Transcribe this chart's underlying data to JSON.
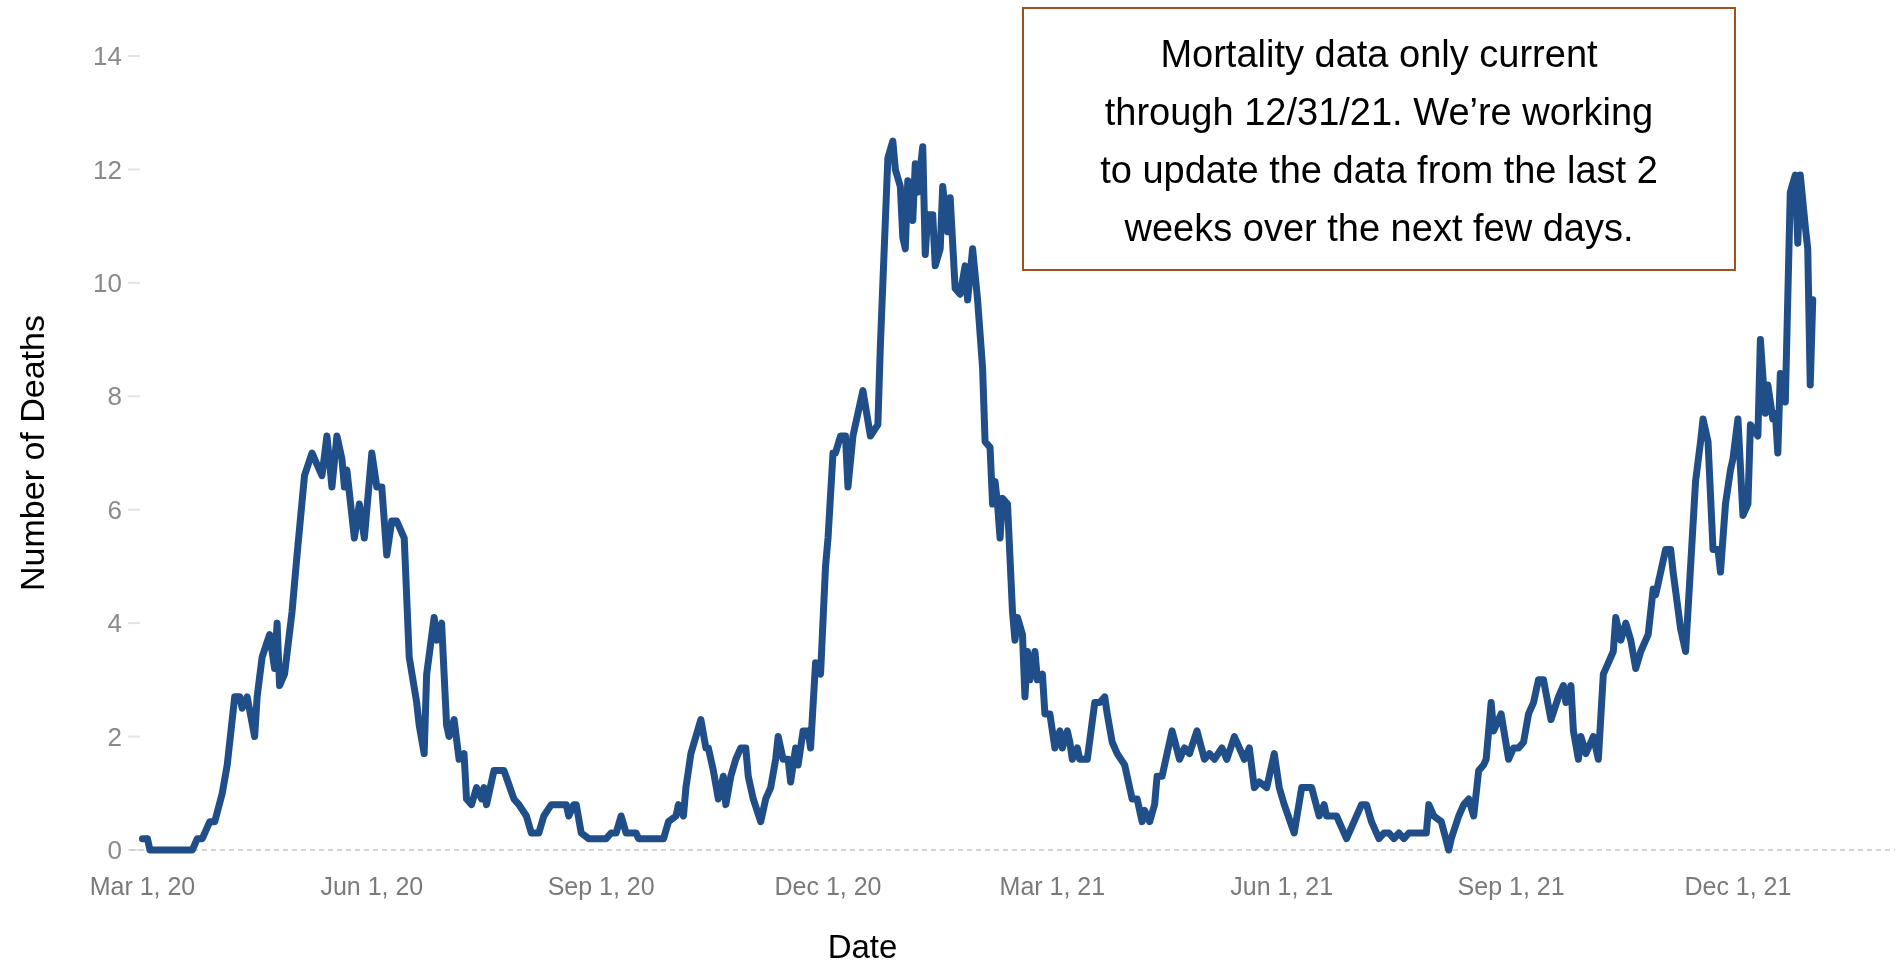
{
  "chart_data": {
    "type": "line",
    "xlabel": "Date",
    "ylabel": "Number of Deaths",
    "color": "#1f4e89",
    "line_style": "solid",
    "marker": "none",
    "grid": false,
    "xlim": [
      "2020-02-25",
      "2022-02-02"
    ],
    "xticks": [
      {
        "value": "2020-03-01",
        "label": "Mar 1, 20"
      },
      {
        "value": "2020-06-01",
        "label": "Jun 1, 20"
      },
      {
        "value": "2020-09-01",
        "label": "Sep 1, 20"
      },
      {
        "value": "2020-12-01",
        "label": "Dec 1, 20"
      },
      {
        "value": "2021-03-01",
        "label": "Mar 1, 21"
      },
      {
        "value": "2021-06-01",
        "label": "Jun 1, 21"
      },
      {
        "value": "2021-09-01",
        "label": "Sep 1, 21"
      },
      {
        "value": "2021-12-01",
        "label": "Dec 1, 21"
      }
    ],
    "ylim": [
      0,
      14
    ],
    "yticks": [
      0,
      2,
      4,
      6,
      8,
      10,
      12,
      14
    ],
    "annotations": [
      "Mortality data only current through 12/31/21. We’re working to update the data from the last 2 weeks over the next few days."
    ],
    "x": [
      "2020-03-01",
      "2020-03-03",
      "2020-03-04",
      "2020-03-21",
      "2020-03-23",
      "2020-03-25",
      "2020-03-28",
      "2020-03-30",
      "2020-04-02",
      "2020-04-04",
      "2020-04-07",
      "2020-04-09",
      "2020-04-10",
      "2020-04-12",
      "2020-04-15",
      "2020-04-16",
      "2020-04-18",
      "2020-04-21",
      "2020-04-23",
      "2020-04-24",
      "2020-04-25",
      "2020-04-27",
      "2020-04-30",
      "2020-05-02",
      "2020-05-05",
      "2020-05-08",
      "2020-05-10",
      "2020-05-12",
      "2020-05-14",
      "2020-05-16",
      "2020-05-18",
      "2020-05-20",
      "2020-05-21",
      "2020-05-22",
      "2020-05-25",
      "2020-05-27",
      "2020-05-29",
      "2020-06-01",
      "2020-06-03",
      "2020-06-05",
      "2020-06-07",
      "2020-06-09",
      "2020-06-11",
      "2020-06-14",
      "2020-06-16",
      "2020-06-19",
      "2020-06-20",
      "2020-06-22",
      "2020-06-23",
      "2020-06-26",
      "2020-06-27",
      "2020-06-29",
      "2020-07-01",
      "2020-07-02",
      "2020-07-04",
      "2020-07-06",
      "2020-07-08",
      "2020-07-09",
      "2020-07-11",
      "2020-07-13",
      "2020-07-15",
      "2020-07-16",
      "2020-07-17",
      "2020-07-20",
      "2020-07-24",
      "2020-07-28",
      "2020-07-30",
      "2020-08-02",
      "2020-08-04",
      "2020-08-07",
      "2020-08-09",
      "2020-08-12",
      "2020-08-18",
      "2020-08-19",
      "2020-08-21",
      "2020-08-22",
      "2020-08-24",
      "2020-08-27",
      "2020-09-03",
      "2020-09-05",
      "2020-09-07",
      "2020-09-09",
      "2020-09-11",
      "2020-09-15",
      "2020-09-16",
      "2020-09-26",
      "2020-09-28",
      "2020-10-01",
      "2020-10-02",
      "2020-10-04",
      "2020-10-05",
      "2020-10-07",
      "2020-10-11",
      "2020-10-13",
      "2020-10-14",
      "2020-10-16",
      "2020-10-18",
      "2020-10-20",
      "2020-10-21",
      "2020-10-23",
      "2020-10-25",
      "2020-10-27",
      "2020-10-29",
      "2020-10-30",
      "2020-11-01",
      "2020-11-04",
      "2020-11-06",
      "2020-11-08",
      "2020-11-10",
      "2020-11-11",
      "2020-11-13",
      "2020-11-15",
      "2020-11-16",
      "2020-11-18",
      "2020-11-19",
      "2020-11-21",
      "2020-11-23",
      "2020-11-24",
      "2020-11-26",
      "2020-11-28",
      "2020-11-30",
      "2020-12-01",
      "2020-12-03",
      "2020-12-04",
      "2020-12-06",
      "2020-12-08",
      "2020-12-09",
      "2020-12-11",
      "2020-12-13",
      "2020-12-15",
      "2020-12-18",
      "2020-12-21",
      "2020-12-22",
      "2020-12-24",
      "2020-12-25",
      "2020-12-27",
      "2020-12-28",
      "2020-12-30",
      "2020-12-31",
      "2021-01-01",
      "2021-01-02",
      "2021-01-04",
      "2021-01-05",
      "2021-01-06",
      "2021-01-08",
      "2021-01-09",
      "2021-01-10",
      "2021-01-12",
      "2021-01-13",
      "2021-01-15",
      "2021-01-16",
      "2021-01-18",
      "2021-01-19",
      "2021-01-21",
      "2021-01-23",
      "2021-01-25",
      "2021-01-26",
      "2021-01-28",
      "2021-01-30",
      "2021-02-01",
      "2021-02-02",
      "2021-02-04",
      "2021-02-05",
      "2021-02-06",
      "2021-02-07",
      "2021-02-08",
      "2021-02-09",
      "2021-02-11",
      "2021-02-13",
      "2021-02-14",
      "2021-02-15",
      "2021-02-17",
      "2021-02-18",
      "2021-02-19",
      "2021-02-20",
      "2021-02-22",
      "2021-02-23",
      "2021-02-25",
      "2021-02-26",
      "2021-02-28",
      "2021-03-02",
      "2021-03-04",
      "2021-03-05",
      "2021-03-07",
      "2021-03-08",
      "2021-03-09",
      "2021-03-11",
      "2021-03-12",
      "2021-03-15",
      "2021-03-18",
      "2021-03-20",
      "2021-03-22",
      "2021-03-23",
      "2021-03-25",
      "2021-03-27",
      "2021-03-30",
      "2021-04-02",
      "2021-04-04",
      "2021-04-06",
      "2021-04-07",
      "2021-04-09",
      "2021-04-11",
      "2021-04-12",
      "2021-04-14",
      "2021-04-18",
      "2021-04-21",
      "2021-04-23",
      "2021-04-25",
      "2021-04-28",
      "2021-05-01",
      "2021-05-03",
      "2021-05-05",
      "2021-05-08",
      "2021-05-10",
      "2021-05-13",
      "2021-05-15",
      "2021-05-17",
      "2021-05-19",
      "2021-05-21",
      "2021-05-23",
      "2021-05-26",
      "2021-05-29",
      "2021-05-31",
      "2021-06-02",
      "2021-06-06",
      "2021-06-09",
      "2021-06-13",
      "2021-06-16",
      "2021-06-18",
      "2021-06-19",
      "2021-06-23",
      "2021-06-25",
      "2021-06-27",
      "2021-06-29",
      "2021-07-03",
      "2021-07-05",
      "2021-07-07",
      "2021-07-10",
      "2021-07-12",
      "2021-07-14",
      "2021-07-16",
      "2021-07-18",
      "2021-07-20",
      "2021-07-22",
      "2021-07-27",
      "2021-07-29",
      "2021-07-30",
      "2021-08-01",
      "2021-08-04",
      "2021-08-07",
      "2021-08-08",
      "2021-08-11",
      "2021-08-13",
      "2021-08-15",
      "2021-08-17",
      "2021-08-19",
      "2021-08-21",
      "2021-08-22",
      "2021-08-24",
      "2021-08-25",
      "2021-08-28",
      "2021-08-31",
      "2021-09-02",
      "2021-09-04",
      "2021-09-06",
      "2021-09-08",
      "2021-09-10",
      "2021-09-12",
      "2021-09-14",
      "2021-09-17",
      "2021-09-20",
      "2021-09-22",
      "2021-09-23",
      "2021-09-25",
      "2021-09-26",
      "2021-09-28",
      "2021-09-29",
      "2021-10-01",
      "2021-10-04",
      "2021-10-06",
      "2021-10-08",
      "2021-10-10",
      "2021-10-12",
      "2021-10-13",
      "2021-10-15",
      "2021-10-17",
      "2021-10-19",
      "2021-10-21",
      "2021-10-23",
      "2021-10-26",
      "2021-10-28",
      "2021-10-29",
      "2021-10-31",
      "2021-11-02",
      "2021-11-04",
      "2021-11-05",
      "2021-11-08",
      "2021-11-10",
      "2021-11-12",
      "2021-11-14",
      "2021-11-16",
      "2021-11-17",
      "2021-11-19",
      "2021-11-21",
      "2021-11-23",
      "2021-11-24",
      "2021-11-26",
      "2021-11-28",
      "2021-11-29",
      "2021-12-01",
      "2021-12-03",
      "2021-12-05",
      "2021-12-06",
      "2021-12-09",
      "2021-12-10",
      "2021-12-12",
      "2021-12-13",
      "2021-12-15",
      "2021-12-16",
      "2021-12-17",
      "2021-12-18",
      "2021-12-20",
      "2021-12-22",
      "2021-12-24",
      "2021-12-25",
      "2021-12-26",
      "2021-12-28",
      "2021-12-29",
      "2021-12-30",
      "2021-12-31"
    ],
    "values": [
      0.2,
      0.2,
      0,
      0,
      0.2,
      0.2,
      0.5,
      0.5,
      1.0,
      1.5,
      2.7,
      2.7,
      2.5,
      2.7,
      2.0,
      2.7,
      3.4,
      3.8,
      3.2,
      4.0,
      2.9,
      3.1,
      4.2,
      5.2,
      6.6,
      7.0,
      6.8,
      6.6,
      7.3,
      6.4,
      7.3,
      6.9,
      6.4,
      6.7,
      5.5,
      6.1,
      5.5,
      7.0,
      6.4,
      6.4,
      5.2,
      5.8,
      5.8,
      5.5,
      3.4,
      2.6,
      2.2,
      1.7,
      3.1,
      4.1,
      3.7,
      4.0,
      2.2,
      2.0,
      2.3,
      1.6,
      1.7,
      0.9,
      0.8,
      1.1,
      0.9,
      1.1,
      0.8,
      1.4,
      1.4,
      0.9,
      0.8,
      0.6,
      0.3,
      0.3,
      0.6,
      0.8,
      0.8,
      0.6,
      0.8,
      0.8,
      0.3,
      0.2,
      0.2,
      0.3,
      0.3,
      0.6,
      0.3,
      0.3,
      0.2,
      0.2,
      0.5,
      0.6,
      0.8,
      0.6,
      1.1,
      1.7,
      2.3,
      1.8,
      1.8,
      1.4,
      0.9,
      1.3,
      0.8,
      1.3,
      1.6,
      1.8,
      1.8,
      1.3,
      0.9,
      0.5,
      0.9,
      1.1,
      1.6,
      2.0,
      1.6,
      1.6,
      1.2,
      1.8,
      1.5,
      2.1,
      2.1,
      1.8,
      3.3,
      3.1,
      5.0,
      5.5,
      7.0,
      7.0,
      7.3,
      7.3,
      6.4,
      7.3,
      7.7,
      8.1,
      7.3,
      7.5,
      8.9,
      11.1,
      12.2,
      12.5,
      12.0,
      11.7,
      10.8,
      10.6,
      11.8,
      11.1,
      12.1,
      11.6,
      12.4,
      10.5,
      11.2,
      11.2,
      10.3,
      10.6,
      11.7,
      10.9,
      11.5,
      9.9,
      9.8,
      10.3,
      9.7,
      10.6,
      9.7,
      8.5,
      7.2,
      7.1,
      6.1,
      6.5,
      6.1,
      5.5,
      6.2,
      6.1,
      4.2,
      3.7,
      4.1,
      3.8,
      2.7,
      3.5,
      3.0,
      3.5,
      3.0,
      3.1,
      2.4,
      2.4,
      1.8,
      2.1,
      1.8,
      2.1,
      1.9,
      1.6,
      1.8,
      1.6,
      1.6,
      2.6,
      2.6,
      2.7,
      2.4,
      1.9,
      1.7,
      1.5,
      0.9,
      0.9,
      0.5,
      0.7,
      0.5,
      0.8,
      1.3,
      1.3,
      2.1,
      1.6,
      1.8,
      1.7,
      2.1,
      1.6,
      1.7,
      1.6,
      1.8,
      1.6,
      2.0,
      1.8,
      1.6,
      1.8,
      1.1,
      1.2,
      1.1,
      1.7,
      1.1,
      0.8,
      0.3,
      1.1,
      1.1,
      0.6,
      0.8,
      0.6,
      0.6,
      0.4,
      0.2,
      0.4,
      0.8,
      0.8,
      0.5,
      0.2,
      0.3,
      0.3,
      0.2,
      0.3,
      0.2,
      0.3,
      0.3,
      0.3,
      0.8,
      0.6,
      0.5,
      0,
      0.2,
      0.6,
      0.8,
      0.9,
      0.6,
      1.4,
      1.5,
      1.6,
      2.6,
      2.1,
      2.4,
      1.6,
      1.8,
      1.8,
      1.9,
      2.4,
      2.6,
      3.0,
      3.0,
      2.3,
      2.7,
      2.9,
      2.6,
      2.9,
      2.1,
      1.6,
      2.0,
      1.7,
      2.0,
      1.6,
      3.1,
      3.3,
      3.5,
      4.1,
      3.7,
      4.0,
      3.7,
      3.2,
      3.5,
      3.8,
      4.6,
      4.5,
      4.9,
      5.3,
      5.3,
      4.9,
      3.9,
      3.5,
      5.0,
      6.5,
      7.2,
      7.6,
      7.2,
      5.3,
      5.3,
      4.9,
      6.1,
      6.7,
      6.9,
      7.6,
      5.9,
      6.1,
      7.5,
      7.3,
      9.0,
      7.7,
      8.2,
      7.6,
      7.7,
      7.0,
      8.4,
      7.9,
      11.6,
      11.9,
      10.7,
      11.9,
      11.0,
      10.6,
      8.2,
      9.7
    ]
  }
}
